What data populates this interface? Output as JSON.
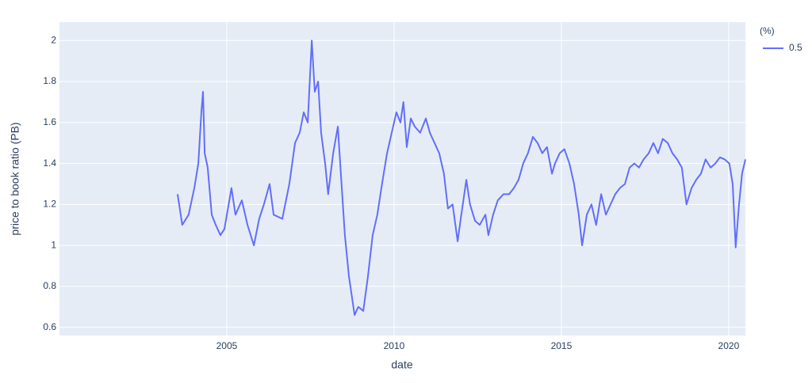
{
  "chart_data": {
    "type": "line",
    "x_label": "date",
    "y_label": "price to book ratio (PB)",
    "legend_title": "(%)",
    "legend_position": "right",
    "grid": true,
    "background": "#e5ecf6",
    "xlim": [
      2000,
      2020.5
    ],
    "ylim": [
      0.56,
      2.09
    ],
    "xticks": [
      2005,
      2010,
      2015,
      2020
    ],
    "yticks": [
      0.6,
      0.8,
      1,
      1.2,
      1.4,
      1.6,
      1.8,
      2
    ],
    "x": [
      2003.53,
      2003.67,
      2003.86,
      2004.03,
      2004.15,
      2004.24,
      2004.29,
      2004.34,
      2004.43,
      2004.55,
      2004.67,
      2004.81,
      2004.93,
      2005.14,
      2005.26,
      2005.45,
      2005.62,
      2005.81,
      2005.97,
      2006.11,
      2006.28,
      2006.4,
      2006.66,
      2006.87,
      2007.04,
      2007.18,
      2007.3,
      2007.42,
      2007.54,
      2007.63,
      2007.73,
      2007.82,
      2007.94,
      2008.03,
      2008.18,
      2008.32,
      2008.41,
      2008.53,
      2008.65,
      2008.82,
      2008.93,
      2009.08,
      2009.22,
      2009.36,
      2009.5,
      2009.64,
      2009.79,
      2009.93,
      2010.07,
      2010.19,
      2010.28,
      2010.38,
      2010.5,
      2010.62,
      2010.78,
      2010.95,
      2011.07,
      2011.21,
      2011.35,
      2011.49,
      2011.61,
      2011.75,
      2011.9,
      2012.01,
      2012.16,
      2012.27,
      2012.42,
      2012.56,
      2012.73,
      2012.82,
      2012.96,
      2013.1,
      2013.27,
      2013.44,
      2013.58,
      2013.72,
      2013.86,
      2014.0,
      2014.15,
      2014.29,
      2014.43,
      2014.57,
      2014.72,
      2014.81,
      2014.95,
      2015.09,
      2015.24,
      2015.38,
      2015.52,
      2015.62,
      2015.76,
      2015.9,
      2016.04,
      2016.19,
      2016.33,
      2016.47,
      2016.61,
      2016.75,
      2016.9,
      2017.04,
      2017.18,
      2017.32,
      2017.46,
      2017.61,
      2017.75,
      2017.89,
      2018.03,
      2018.18,
      2018.32,
      2018.46,
      2018.6,
      2018.74,
      2018.89,
      2019.03,
      2019.17,
      2019.31,
      2019.46,
      2019.6,
      2019.74,
      2019.88,
      2020.02,
      2020.12,
      2020.21,
      2020.31,
      2020.4,
      2020.5
    ],
    "series": [
      {
        "name": "0.5",
        "color": "#636efa",
        "values": [
          1.25,
          1.1,
          1.15,
          1.28,
          1.4,
          1.65,
          1.75,
          1.45,
          1.38,
          1.15,
          1.1,
          1.05,
          1.08,
          1.28,
          1.15,
          1.22,
          1.1,
          1.0,
          1.13,
          1.2,
          1.3,
          1.15,
          1.13,
          1.3,
          1.5,
          1.55,
          1.65,
          1.6,
          2.0,
          1.75,
          1.8,
          1.55,
          1.4,
          1.25,
          1.45,
          1.58,
          1.35,
          1.05,
          0.85,
          0.66,
          0.7,
          0.68,
          0.85,
          1.05,
          1.15,
          1.3,
          1.45,
          1.55,
          1.65,
          1.6,
          1.7,
          1.48,
          1.62,
          1.58,
          1.55,
          1.62,
          1.55,
          1.5,
          1.45,
          1.35,
          1.18,
          1.2,
          1.02,
          1.15,
          1.32,
          1.2,
          1.12,
          1.1,
          1.15,
          1.05,
          1.15,
          1.22,
          1.25,
          1.25,
          1.28,
          1.32,
          1.4,
          1.45,
          1.53,
          1.5,
          1.45,
          1.48,
          1.35,
          1.4,
          1.45,
          1.47,
          1.4,
          1.3,
          1.15,
          1.0,
          1.15,
          1.2,
          1.1,
          1.25,
          1.15,
          1.2,
          1.25,
          1.28,
          1.3,
          1.38,
          1.4,
          1.38,
          1.42,
          1.45,
          1.5,
          1.45,
          1.52,
          1.5,
          1.45,
          1.42,
          1.38,
          1.2,
          1.28,
          1.32,
          1.35,
          1.42,
          1.38,
          1.4,
          1.43,
          1.42,
          1.4,
          1.3,
          0.99,
          1.2,
          1.35,
          1.42
        ]
      }
    ]
  }
}
